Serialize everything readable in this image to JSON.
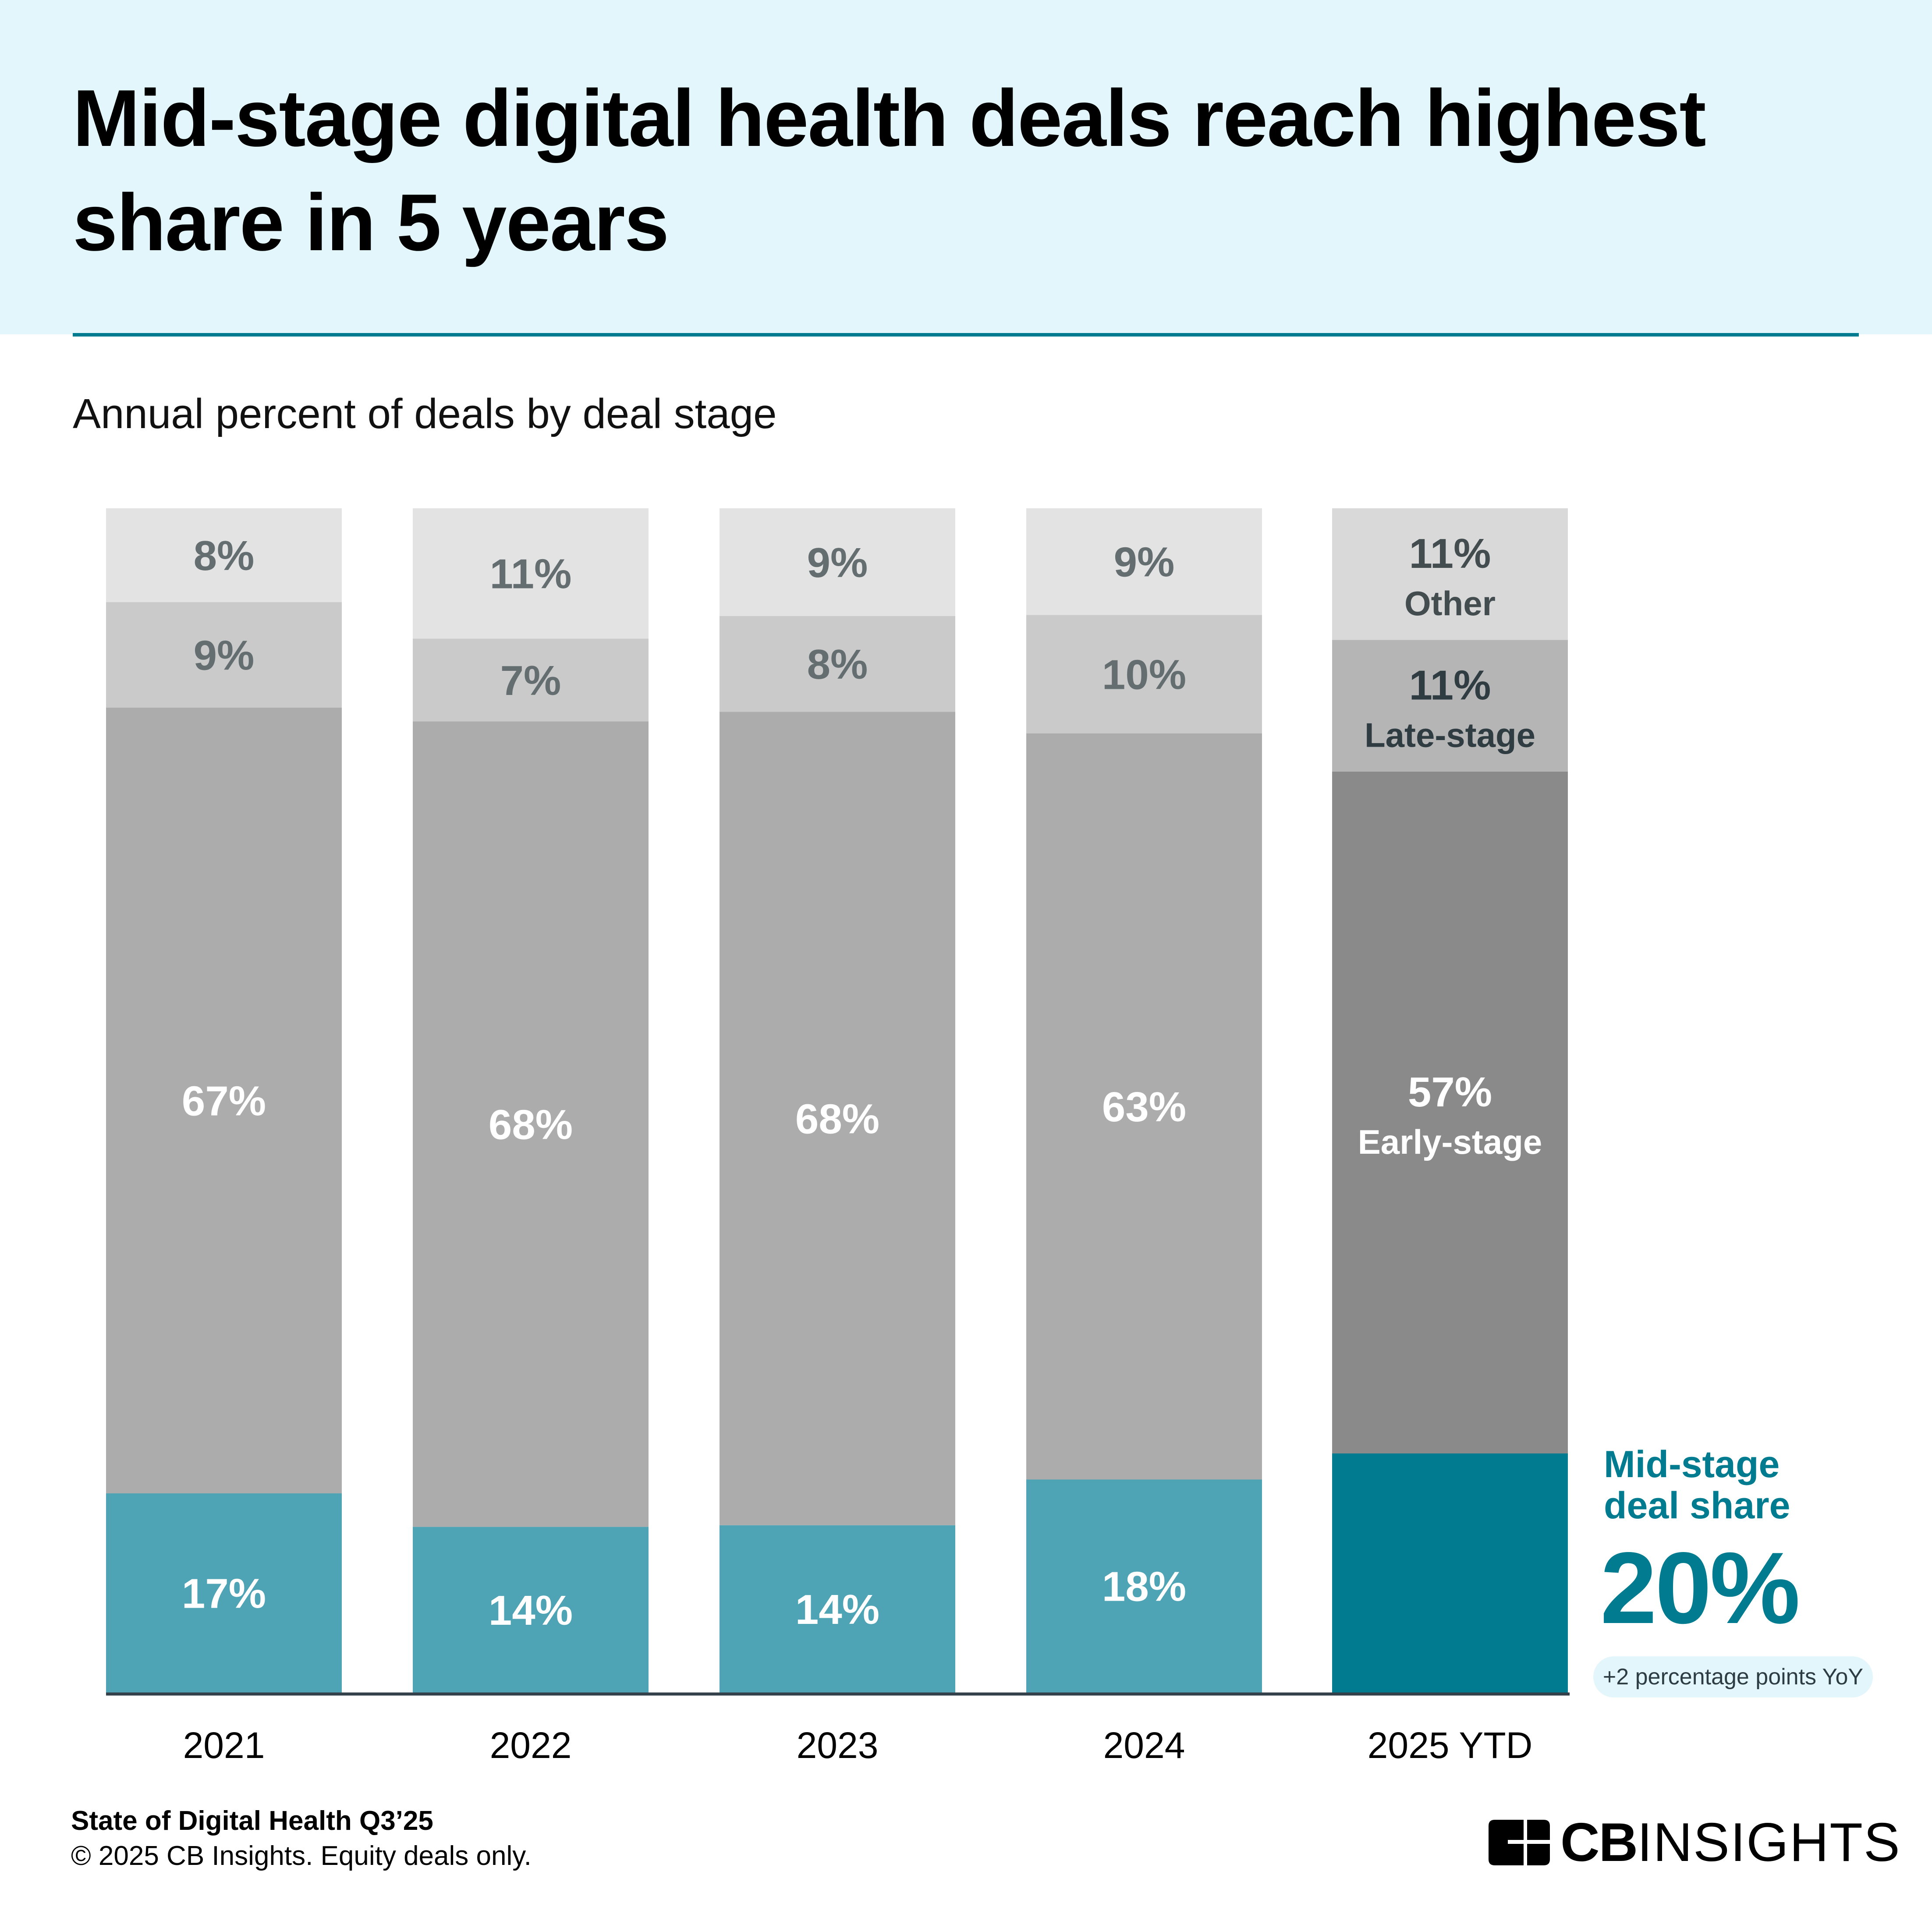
{
  "header": {
    "title_line1": "Mid-stage digital health deals reach highest",
    "title_line2": "share in 5 years",
    "subtitle": "Annual percent of deals by deal stage"
  },
  "colors": {
    "header_bg": "#E3F6FB",
    "accent": "#007B8F",
    "mid_stage_past": "#4EA3B4",
    "mid_stage_current": "#007B8F",
    "early_stage_past": "#ACACAC",
    "early_stage_current": "#8A8A8A",
    "late_stage_past": "#CACACA",
    "late_stage_current": "#B5B5B5",
    "other_past": "#E3E3E3",
    "other_current": "#D9D9D9",
    "label_dark": "#646D70",
    "label_current": "#33404A"
  },
  "chart_data": {
    "type": "bar",
    "stacked": true,
    "title": "Mid-stage digital health deals reach highest share in 5 years",
    "subtitle": "Annual percent of deals by deal stage",
    "xlabel": "",
    "ylabel": "",
    "ylim": [
      0,
      100
    ],
    "grid": false,
    "categories": [
      "2021",
      "2022",
      "2023",
      "2024",
      "2025 YTD"
    ],
    "series": [
      {
        "name": "Mid-stage",
        "values": [
          17,
          14,
          14,
          18,
          20
        ],
        "labels": [
          "17%",
          "14%",
          "14%",
          "18%",
          ""
        ]
      },
      {
        "name": "Early-stage",
        "values": [
          67,
          68,
          68,
          63,
          57
        ],
        "labels": [
          "67%",
          "68%",
          "68%",
          "63%",
          "57%"
        ]
      },
      {
        "name": "Late-stage",
        "values": [
          9,
          7,
          8,
          10,
          11
        ],
        "labels": [
          "9%",
          "7%",
          "8%",
          "10%",
          "11%"
        ]
      },
      {
        "name": "Other",
        "values": [
          8,
          11,
          9,
          9,
          11
        ],
        "labels": [
          "8%",
          "11%",
          "9%",
          "9%",
          "11%"
        ]
      }
    ],
    "series_labels_on_last_bar": {
      "Early-stage": "Early-stage",
      "Late-stage": "Late-stage",
      "Other": "Other"
    },
    "highlight_category": "2025 YTD"
  },
  "callout": {
    "title_line1": "Mid-stage",
    "title_line2": "deal share",
    "value": "20%",
    "delta": "+2 percentage points YoY"
  },
  "footer": {
    "source": "State of Digital Health Q3’25",
    "copyright": "© 2025 CB Insights. Equity deals only."
  },
  "logo": {
    "bold": "CB",
    "regular": "INSIGHTS",
    "icon": "cb-insights-logo-icon"
  }
}
